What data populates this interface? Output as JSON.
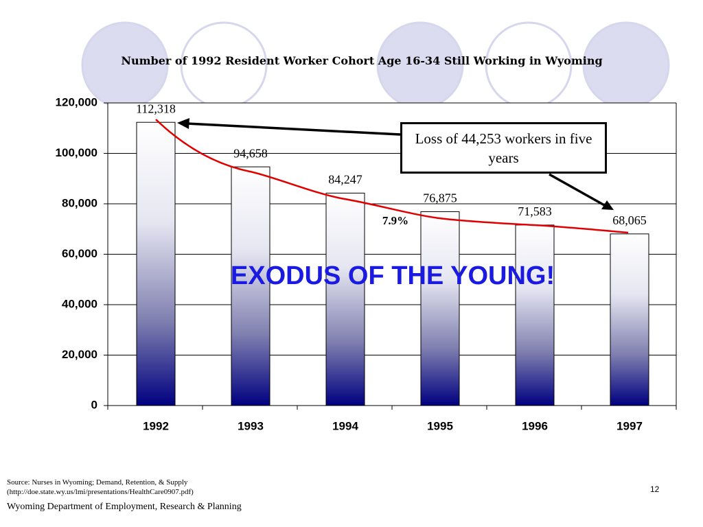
{
  "chart_data": {
    "type": "bar",
    "title": "Number of 1992 Resident Worker Cohort Age 16-34 Still Working in Wyoming",
    "categories": [
      "1992",
      "1993",
      "1994",
      "1995",
      "1996",
      "1997"
    ],
    "values": [
      112318,
      94658,
      84247,
      76875,
      71583,
      68065
    ],
    "value_labels": [
      "112,318",
      "94,658",
      "84,247",
      "76,875",
      "71,583",
      "68,065"
    ],
    "ylim": [
      0,
      120000
    ],
    "yticks": [
      0,
      {
        "value": 20000,
        "label": "20,000"
      },
      {
        "value": 40000,
        "label": "40,000"
      },
      {
        "value": 60000,
        "label": "60,000"
      },
      {
        "value": 80000,
        "label": "80,000"
      },
      {
        "value": 100000,
        "label": "100,000"
      },
      {
        "value": 120000,
        "label": "120,000"
      }
    ],
    "grid": true,
    "annotations": [
      "Loss of 44,253 workers in five years",
      "7.9%",
      "EXODUS OF THE YOUNG!"
    ]
  },
  "footer": {
    "source_lines": [
      "Source: Nurses in Wyoming; Demand, Retention, & Supply",
      "(http://doe.state.wy.us/lmi/presentations/HealthCare0907.pdf)"
    ],
    "page_number": "12",
    "organization": "Wyoming Department of Employment, Research & Planning"
  }
}
